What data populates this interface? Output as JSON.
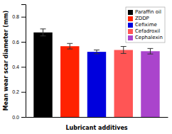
{
  "chart_data": {
    "type": "bar",
    "categories": [
      "Paraffin oil",
      "ZDDP",
      "Cefixime",
      "Cefadroxil",
      "Cephalexin"
    ],
    "values": [
      0.675,
      0.565,
      0.52,
      0.535,
      0.525
    ],
    "errors": [
      0.028,
      0.022,
      0.015,
      0.028,
      0.022
    ],
    "colors": [
      "#000000",
      "#ff2200",
      "#0000dd",
      "#ff5555",
      "#aa44cc"
    ],
    "xlabel": "Lubricant additives",
    "ylabel": "Mean wear scar diameter (mm)",
    "ylim": [
      0.0,
      0.9
    ],
    "yticks": [
      {
        "value": 0,
        "label": "0.0"
      },
      0.2,
      0.4,
      0.6,
      0.8
    ],
    "legend": "upper right",
    "tick_labels": "y",
    "grid": false
  }
}
